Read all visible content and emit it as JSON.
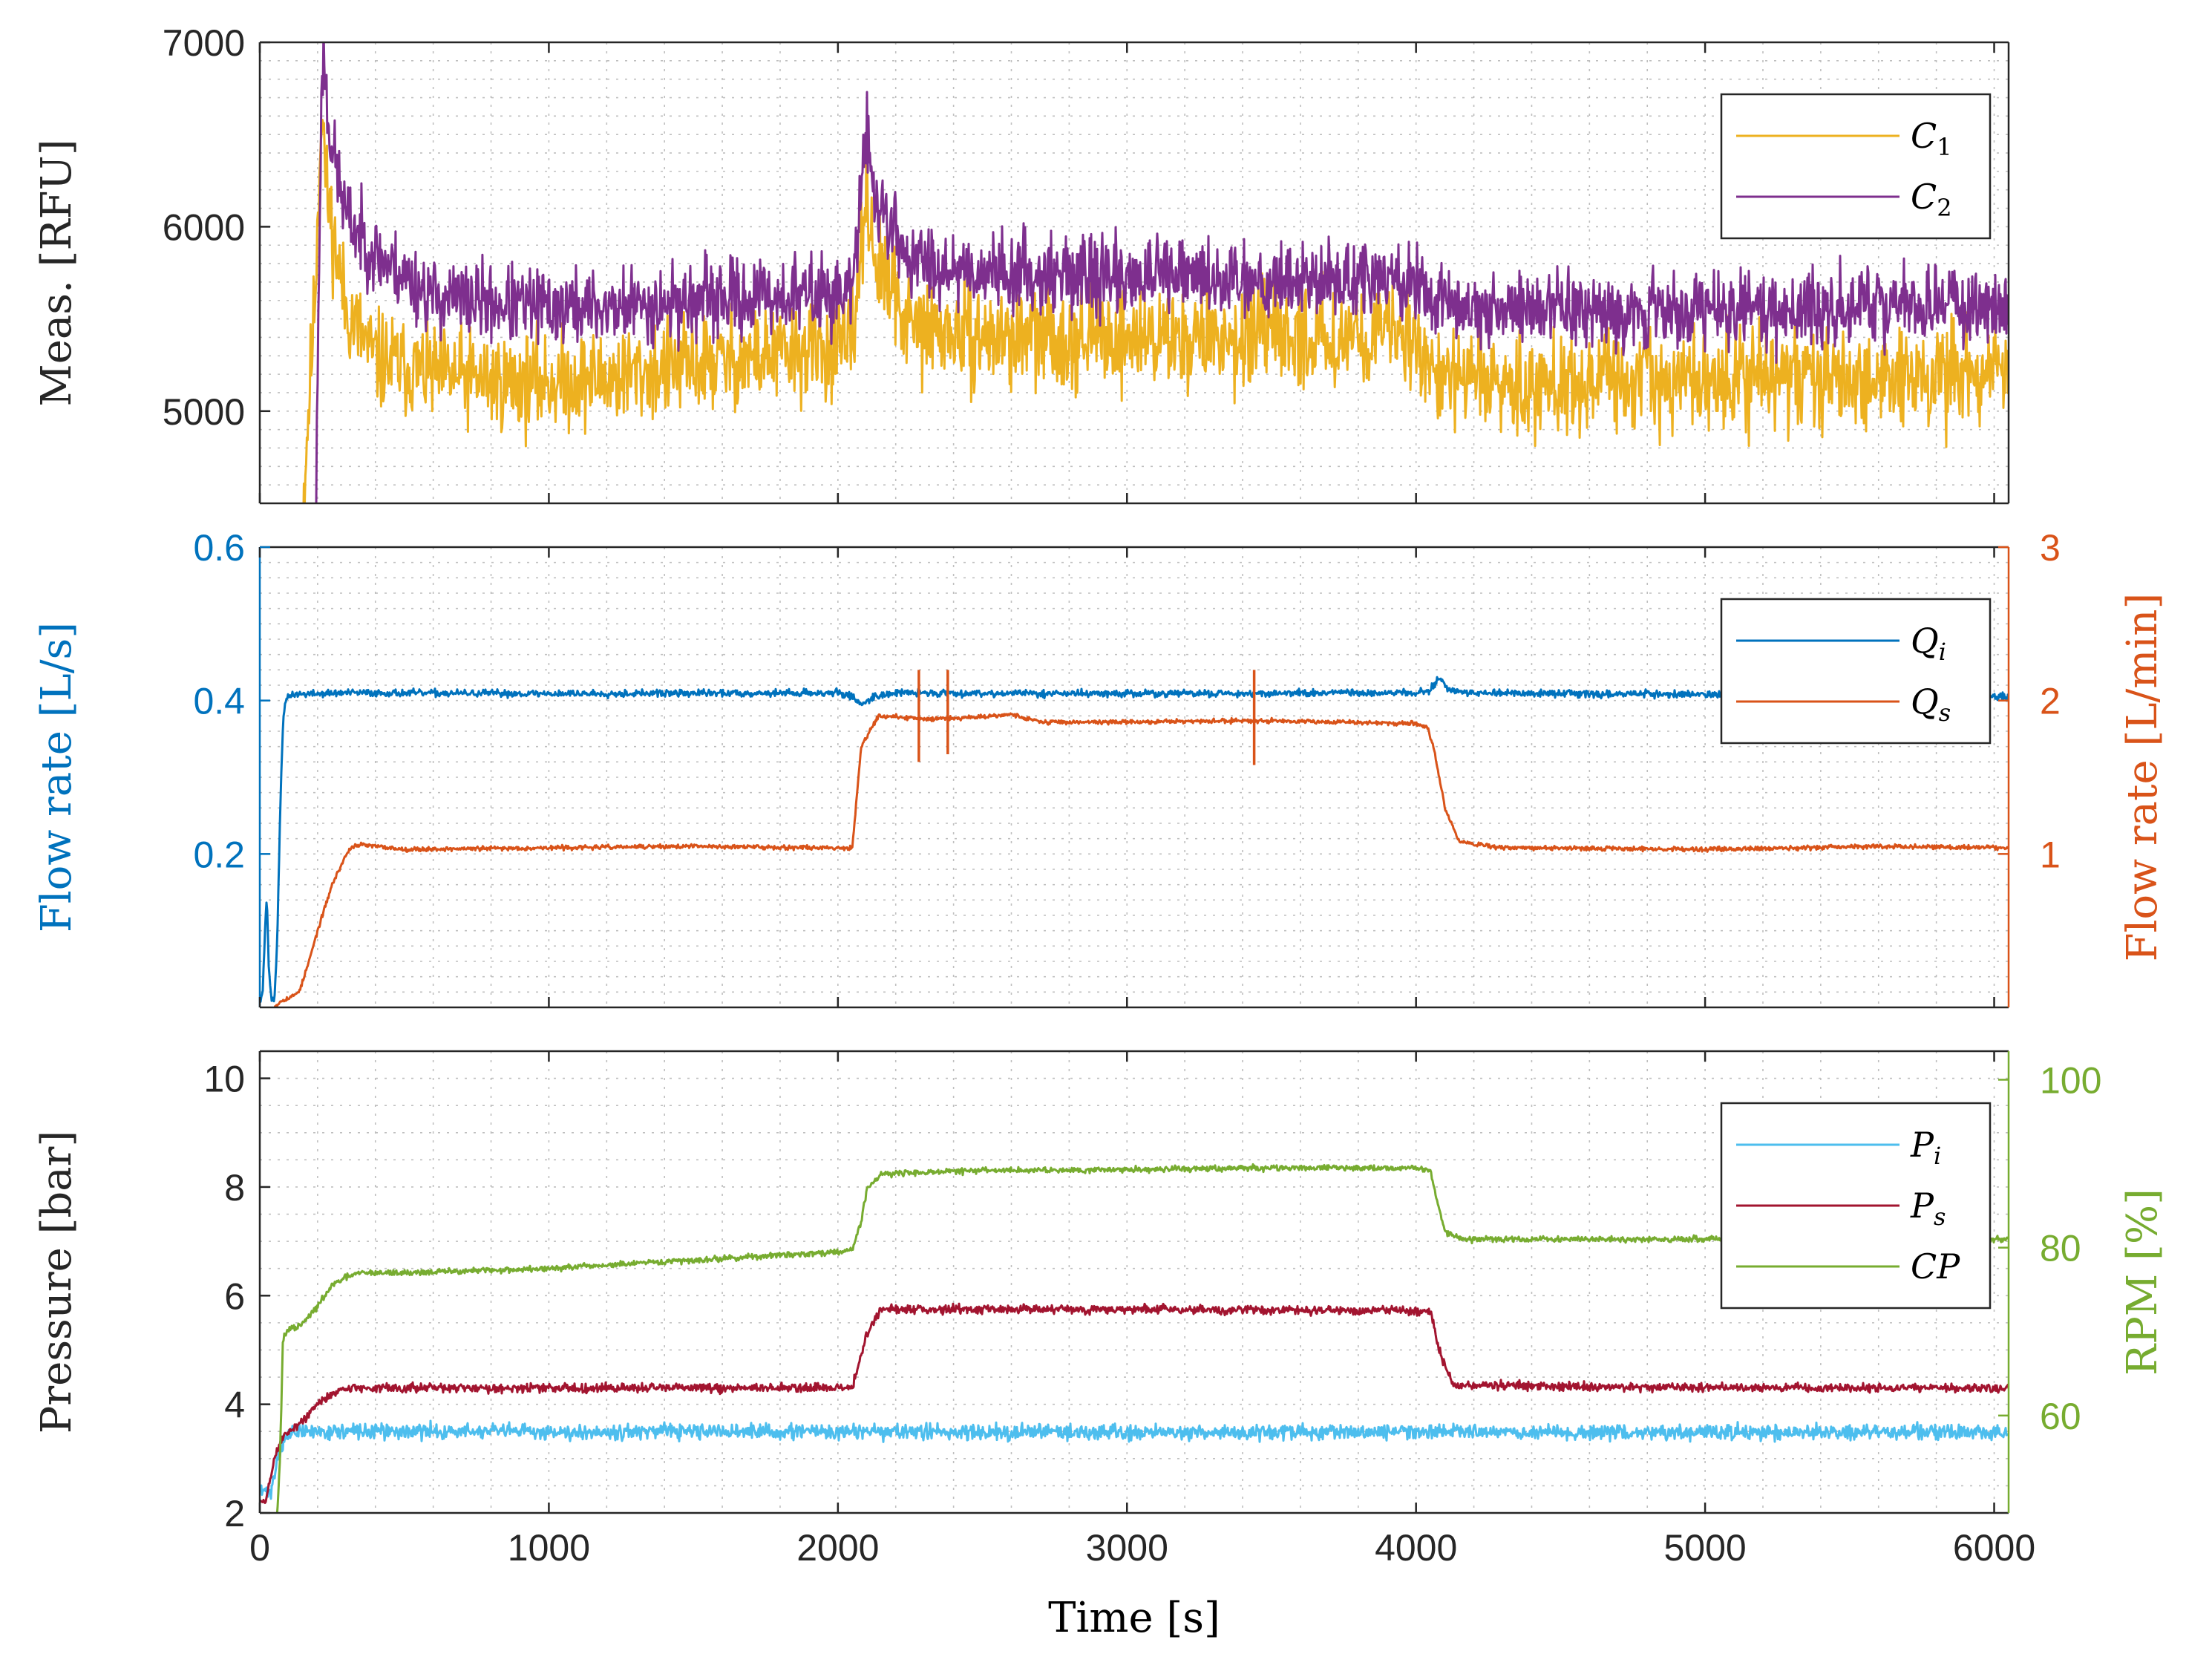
{
  "colors": {
    "c1": "#EDB120",
    "c2": "#7E2F8E",
    "qi": "#0072BD",
    "qs": "#D95319",
    "pi": "#4DBEEE",
    "ps": "#A2142F",
    "cp": "#77AC30",
    "axis": "#262626",
    "grid": "#BFBFBF"
  },
  "chart_data": [
    {
      "id": "meas",
      "type": "line",
      "title": "",
      "ylabel": "Meas. [RFU]",
      "xlim": [
        0,
        6050
      ],
      "ylim": [
        4500,
        7000
      ],
      "yticks": [
        5000,
        6000,
        7000
      ],
      "ytick_labels": [
        "5000",
        "6000",
        "7000"
      ],
      "grid": true,
      "legend_position": "top-right",
      "series": [
        {
          "name": "C1",
          "legend": "C",
          "sub": "1",
          "color": "#EDB120",
          "axis": "left",
          "noise": 230,
          "seed": 11,
          "x": [
            150,
            190,
            215,
            230,
            260,
            300,
            400,
            600,
            900,
            1200,
            1600,
            2000,
            2050,
            2080,
            2100,
            2130,
            2250,
            2500,
            3000,
            3500,
            4000,
            4060,
            4120,
            4500,
            5000,
            5500,
            6050
          ],
          "y": [
            4500,
            5600,
            6700,
            6200,
            5900,
            5550,
            5280,
            5200,
            5150,
            5180,
            5270,
            5340,
            5360,
            5900,
            6200,
            5800,
            5450,
            5400,
            5400,
            5400,
            5420,
            5200,
            5180,
            5150,
            5170,
            5180,
            5200
          ]
        },
        {
          "name": "C2",
          "legend": "C",
          "sub": "2",
          "color": "#7E2F8E",
          "axis": "left",
          "noise": 180,
          "seed": 23,
          "x": [
            195,
            200,
            210,
            220,
            235,
            260,
            300,
            400,
            600,
            900,
            1200,
            1600,
            2000,
            2050,
            2080,
            2100,
            2130,
            2250,
            2500,
            3000,
            3500,
            4000,
            4060,
            4120,
            4500,
            5000,
            5500,
            6050
          ],
          "y": [
            4500,
            5200,
            6400,
            7000,
            6600,
            6350,
            6050,
            5850,
            5620,
            5570,
            5560,
            5610,
            5640,
            5650,
            6200,
            6500,
            6150,
            5820,
            5760,
            5730,
            5720,
            5700,
            5600,
            5570,
            5560,
            5550,
            5560,
            5580
          ]
        }
      ]
    },
    {
      "id": "flow",
      "type": "line",
      "title": "",
      "ylabel_left": "Flow rate [L/s]",
      "ylabel_right": "Flow rate [L/min]",
      "xlim": [
        0,
        6050
      ],
      "ylim_left": [
        0,
        0.6
      ],
      "ylim_right": [
        0,
        3
      ],
      "yticks_left": [
        0.2,
        0.4,
        0.6
      ],
      "ytick_labels_left": [
        "0.2",
        "0.4",
        "0.6"
      ],
      "yticks_right": [
        1,
        2,
        3
      ],
      "ytick_labels_right": [
        "1",
        "2",
        "3"
      ],
      "grid": true,
      "legend_position": "top-right",
      "series": [
        {
          "name": "Qi",
          "legend": "Q",
          "sub": "i",
          "color": "#0072BD",
          "axis": "left",
          "noise": 0.004,
          "seed": 37,
          "x": [
            0,
            10,
            20,
            25,
            30,
            40,
            50,
            60,
            70,
            80,
            90,
            110,
            300,
            1000,
            2000,
            2050,
            2080,
            2130,
            2200,
            3000,
            4000,
            4050,
            4080,
            4110,
            4150,
            5000,
            6050
          ],
          "y": [
            0.01,
            0.02,
            0.12,
            0.14,
            0.06,
            0.01,
            0.01,
            0.08,
            0.25,
            0.37,
            0.4,
            0.408,
            0.41,
            0.409,
            0.41,
            0.405,
            0.395,
            0.406,
            0.41,
            0.409,
            0.41,
            0.414,
            0.43,
            0.415,
            0.41,
            0.408,
            0.405
          ]
        },
        {
          "name": "Qs",
          "legend": "Q",
          "sub": "s",
          "color": "#D95319",
          "axis": "right",
          "noise": 0.012,
          "seed": 53,
          "x": [
            50,
            60,
            80,
            100,
            120,
            140,
            170,
            200,
            250,
            300,
            320,
            350,
            500,
            1000,
            1500,
            2000,
            2050,
            2080,
            2140,
            2300,
            2450,
            2600,
            2700,
            3000,
            3500,
            4000,
            4040,
            4060,
            4100,
            4150,
            4300,
            5000,
            5600,
            6050
          ],
          "y": [
            0.0,
            0.02,
            0.05,
            0.06,
            0.08,
            0.12,
            0.3,
            0.5,
            0.8,
            1.0,
            1.05,
            1.06,
            1.03,
            1.04,
            1.05,
            1.04,
            1.04,
            1.7,
            1.9,
            1.88,
            1.89,
            1.91,
            1.86,
            1.86,
            1.87,
            1.85,
            1.82,
            1.7,
            1.3,
            1.08,
            1.04,
            1.03,
            1.05,
            1.04
          ],
          "spikes": [
            [
              2280,
              1.6,
              2.2
            ],
            [
              2380,
              1.65,
              2.2
            ],
            [
              3440,
              1.58,
              2.2
            ]
          ]
        }
      ]
    },
    {
      "id": "pressure",
      "type": "line",
      "title": "",
      "ylabel_left": "Pressure [bar]",
      "ylabel_right": "RPM [%]",
      "xlabel": "Time [s]",
      "xlim": [
        0,
        6050
      ],
      "ylim_left": [
        2,
        10.5
      ],
      "ylim_right": [
        48.4,
        103.4
      ],
      "yticks_left": [
        2,
        4,
        6,
        8,
        10
      ],
      "ytick_labels_left": [
        "2",
        "4",
        "6",
        "8",
        "10"
      ],
      "yticks_right": [
        60,
        80,
        100
      ],
      "ytick_labels_right": [
        "60",
        "80",
        "100"
      ],
      "xticks": [
        0,
        1000,
        2000,
        3000,
        4000,
        5000,
        6000
      ],
      "xtick_labels": [
        "0",
        "1000",
        "2000",
        "3000",
        "4000",
        "5000",
        "6000"
      ],
      "grid": true,
      "legend_position": "top-right",
      "series": [
        {
          "name": "Pi",
          "legend": "P",
          "sub": "i",
          "color": "#4DBEEE",
          "axis": "left",
          "noise": 0.12,
          "seed": 71,
          "x": [
            0,
            40,
            60,
            80,
            100,
            150,
            6050
          ],
          "y": [
            2.4,
            2.4,
            3.0,
            3.3,
            3.45,
            3.5,
            3.48
          ]
        },
        {
          "name": "Ps",
          "legend": "P",
          "sub": "s",
          "color": "#A2142F",
          "axis": "left",
          "noise": 0.07,
          "seed": 89,
          "x": [
            0,
            20,
            50,
            80,
            100,
            150,
            200,
            250,
            300,
            400,
            1000,
            2000,
            2050,
            2100,
            2150,
            2300,
            3000,
            4000,
            4050,
            4080,
            4130,
            5000,
            6050
          ],
          "y": [
            2.2,
            2.2,
            3.0,
            3.4,
            3.5,
            3.7,
            4.0,
            4.2,
            4.3,
            4.3,
            4.3,
            4.3,
            4.3,
            5.3,
            5.75,
            5.75,
            5.75,
            5.72,
            5.7,
            5.0,
            4.35,
            4.3,
            4.3
          ]
        },
        {
          "name": "CP",
          "legend": "CP",
          "sub": "",
          "color": "#77AC30",
          "axis": "right",
          "noise": 0.3,
          "seed": 97,
          "x": [
            0,
            60,
            70,
            80,
            100,
            130,
            150,
            200,
            250,
            300,
            350,
            500,
            1000,
            1500,
            2000,
            2050,
            2080,
            2100,
            2150,
            2500,
            3000,
            3500,
            4000,
            4050,
            4070,
            4100,
            4150,
            4500,
            5000,
            6050
          ],
          "y": [
            48,
            48,
            55,
            69,
            70.3,
            70.5,
            71,
            73,
            75.5,
            76.5,
            77,
            77,
            77.5,
            78.5,
            79.5,
            79.8,
            83,
            87,
            88.8,
            89.2,
            89.3,
            89.5,
            89.5,
            89.2,
            86,
            82,
            81,
            81,
            81,
            81
          ]
        }
      ]
    }
  ]
}
